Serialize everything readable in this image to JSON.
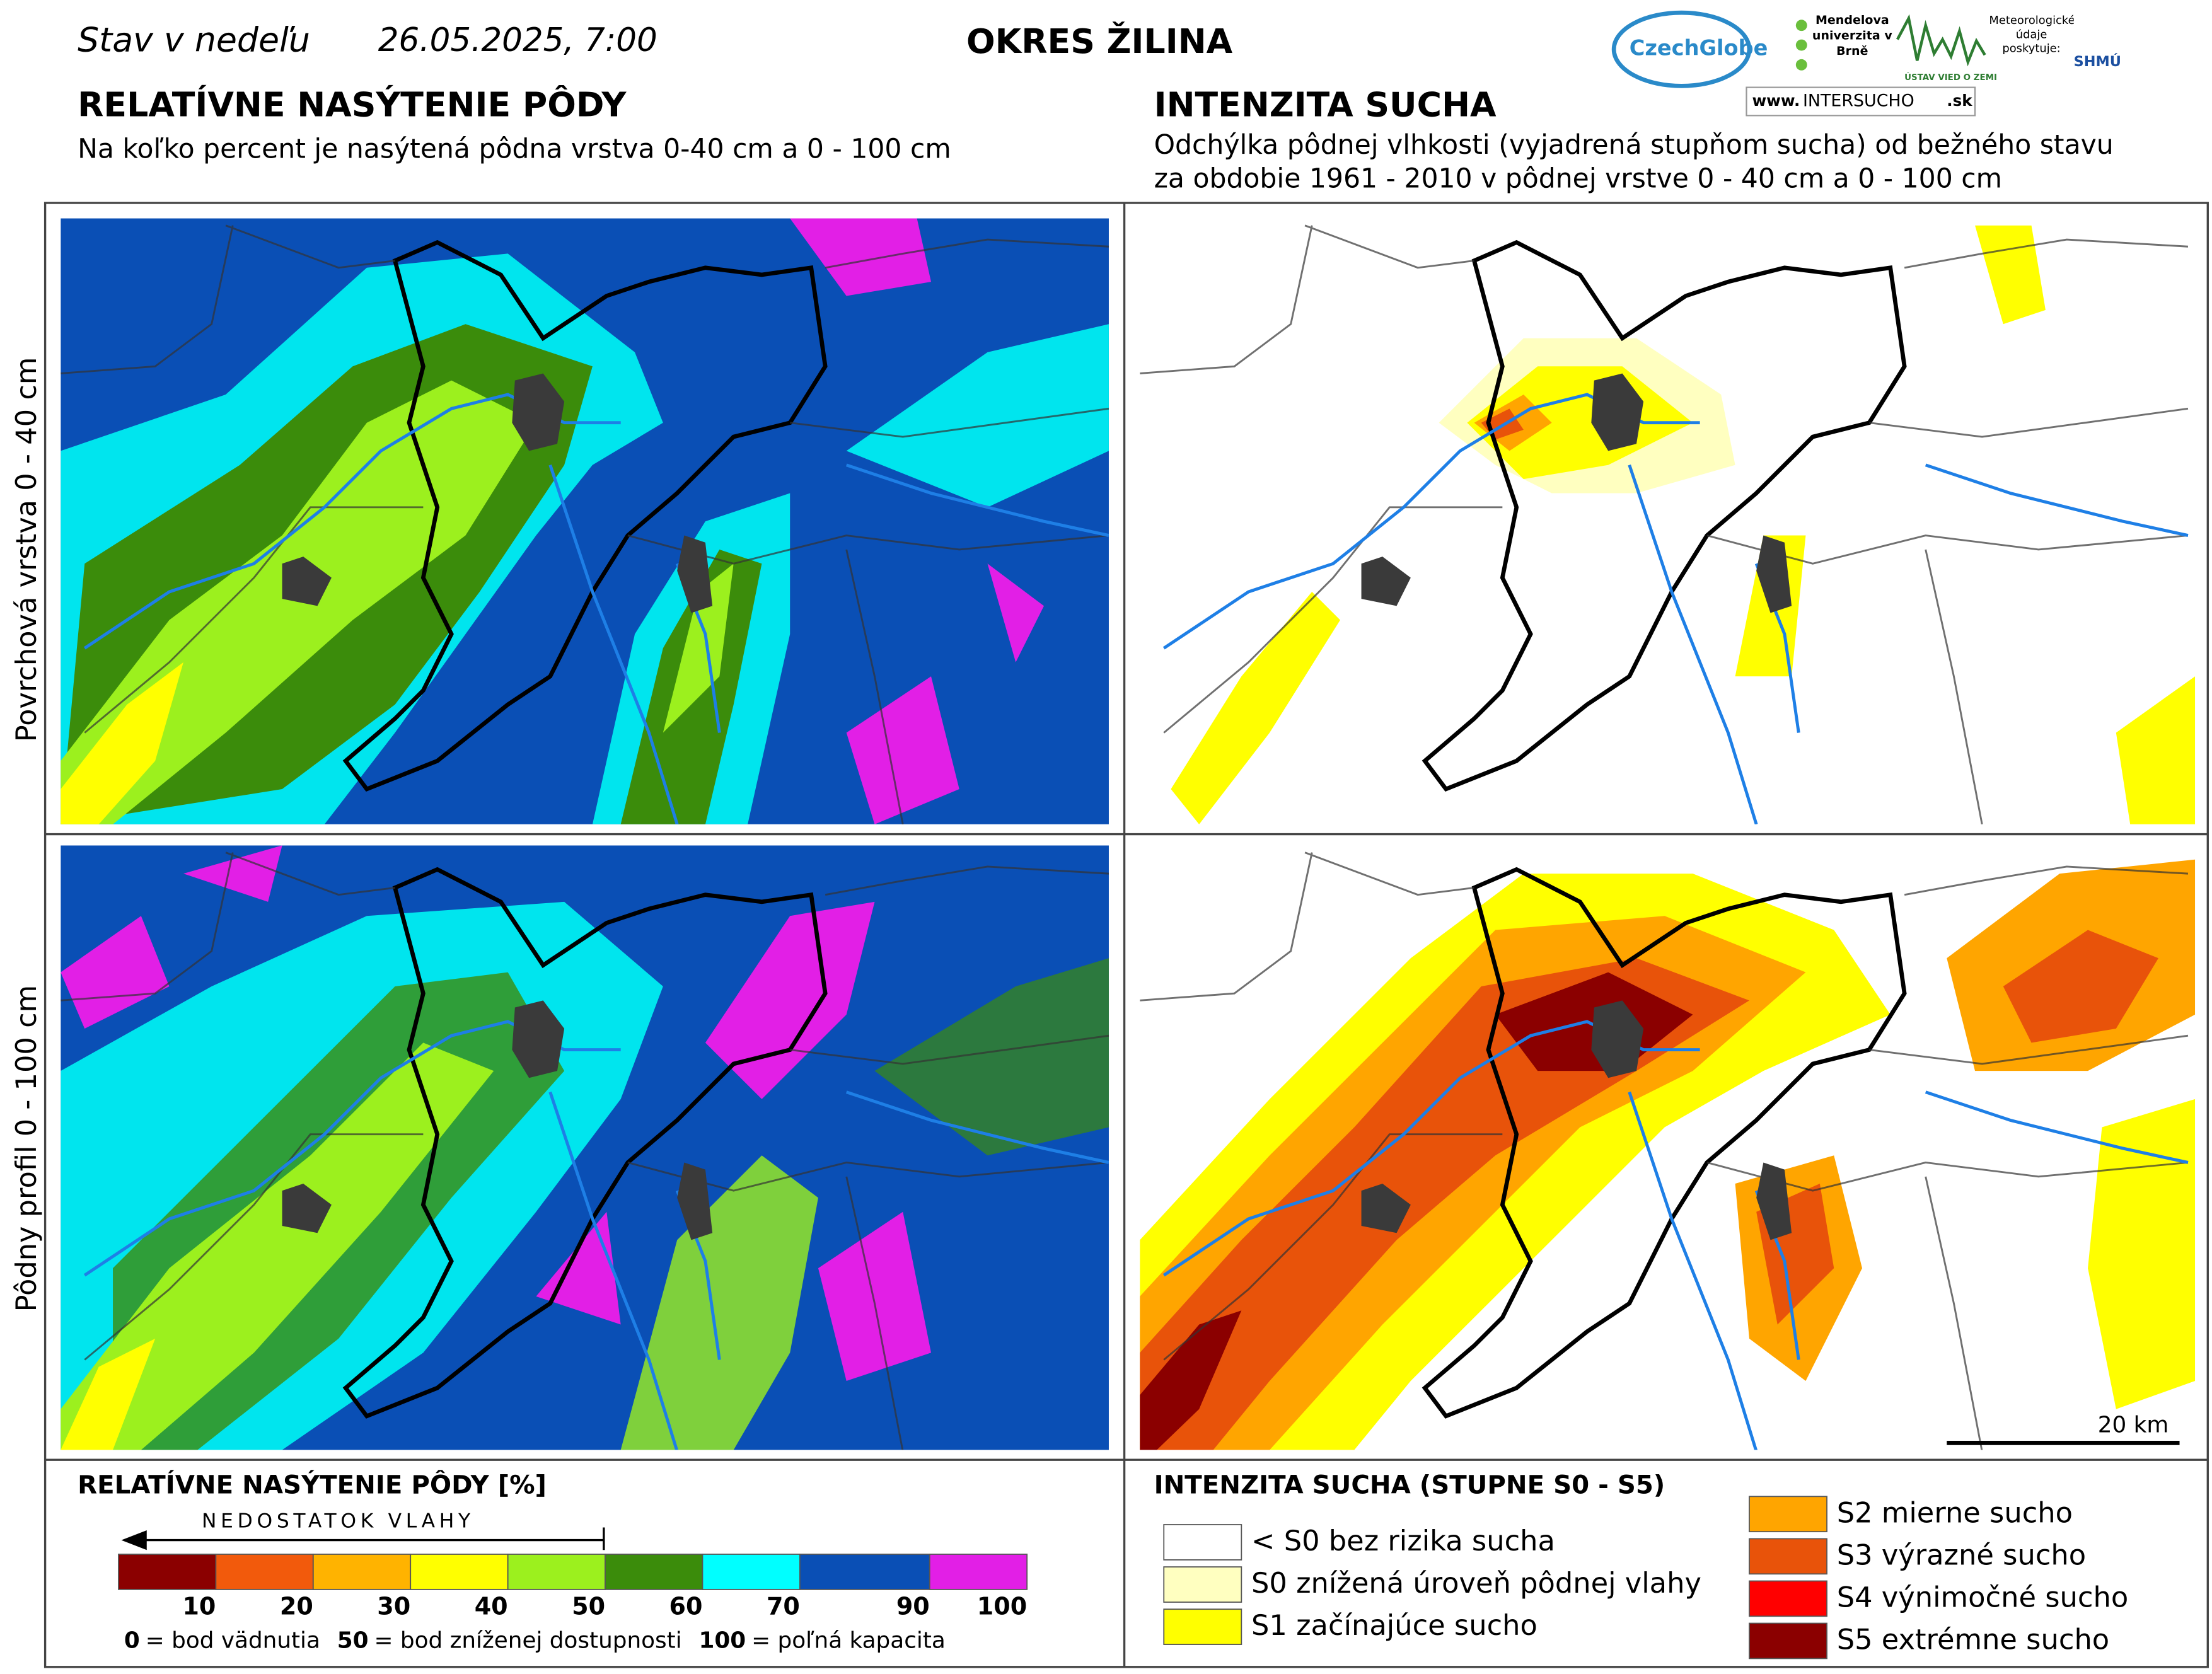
{
  "header": {
    "day": "Stav v nedeľu",
    "date": "26.05.2025, 7:00",
    "district": "OKRES ŽILINA",
    "logos": {
      "czechglobe": "CzechGlobe",
      "mendelu": "Mendelova univerzita v Brně",
      "uvz": "ÚSTAV VIED O ZEMI",
      "meteo": "Meteorologické údaje poskytuje:",
      "shmu": "SHMÚ",
      "www": "www.",
      "intersucho": "INTERSUCHO",
      "sk": ".sk"
    }
  },
  "left": {
    "title": "RELATÍVNE NASÝTENIE PÔDY",
    "subtitle": "Na koľko percent je nasýtená pôdna vrstva 0-40 cm a 0 - 100 cm"
  },
  "right": {
    "title": "INTENZITA SUCHA",
    "subtitle_lines": [
      "Odchýlka pôdnej vlhkosti (vyjadrená stupňom sucha) od bežného stavu",
      "za obdobie 1961 - 2010 v pôdnej vrstve 0 - 40 cm a 0 - 100 cm"
    ]
  },
  "rows": [
    "Povrchová vrstva 0 - 40 cm",
    "Pôdny profil 0 - 100 cm"
  ],
  "scale_bar": "20 km",
  "legend_saturation": {
    "title": "RELATÍVNE NASÝTENIE PÔDY [%]",
    "arrow": "NEDOSTATOK VLAHY",
    "bins": [
      {
        "upper": "10",
        "color": "#8b0000"
      },
      {
        "upper": "20",
        "color": "#f25a0c"
      },
      {
        "upper": "30",
        "color": "#ffb300"
      },
      {
        "upper": "40",
        "color": "#ffff00"
      },
      {
        "upper": "50",
        "color": "#9cf01e"
      },
      {
        "upper": "60",
        "color": "#3b8c0b"
      },
      {
        "upper": "70",
        "color": "#00ffff"
      },
      {
        "upper": "90",
        "color": "#0a4fb5"
      },
      {
        "upper": "100",
        "color": "#e21fe6"
      }
    ],
    "notes": [
      {
        "value": "0",
        "text": "= bod vädnutia"
      },
      {
        "value": "50",
        "text": "= bod zníženej dostupnosti"
      },
      {
        "value": "100",
        "text": "= poľná kapacita"
      }
    ]
  },
  "legend_drought": {
    "title": "INTENZITA SUCHA (STUPNE S0 - S5)",
    "items": [
      {
        "label": "< S0 bez rizika sucha",
        "color": "#ffffff"
      },
      {
        "label": "S0 znížená úroveň pôdnej vlahy",
        "color": "#ffffc0"
      },
      {
        "label": "S1 začínajúce sucho",
        "color": "#ffff00"
      },
      {
        "label": "S2 mierne sucho",
        "color": "#ffa500"
      },
      {
        "label": "S3 výrazné sucho",
        "color": "#e8530a"
      },
      {
        "label": "S4 výnimočné sucho",
        "color": "#ff0000"
      },
      {
        "label": "S5 extrémne sucho",
        "color": "#8b0000"
      }
    ]
  }
}
